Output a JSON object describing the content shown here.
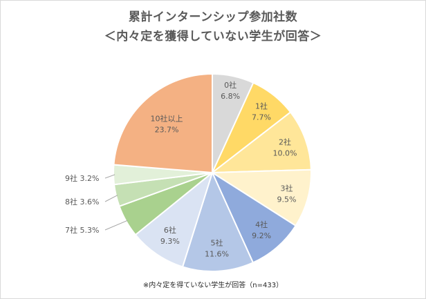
{
  "chart_data": {
    "type": "pie",
    "title": "累計インターンシップ参加社数",
    "subtitle": "＜内々定を獲得していない学生が回答＞",
    "note": "※内々定を得ていない学生が回答（n=433）",
    "slices": [
      {
        "name": "0社",
        "value": 6.8,
        "label": "6.8%",
        "color": "#d9d9d9"
      },
      {
        "name": "1社",
        "value": 7.7,
        "label": "7.7%",
        "color": "#ffd966"
      },
      {
        "name": "2社",
        "value": 10.0,
        "label": "10.0%",
        "color": "#ffe699"
      },
      {
        "name": "3社",
        "value": 9.5,
        "label": "9.5%",
        "color": "#fff2cc"
      },
      {
        "name": "4社",
        "value": 9.2,
        "label": "9.2%",
        "color": "#8faadc"
      },
      {
        "name": "5社",
        "value": 11.6,
        "label": "11.6%",
        "color": "#b4c7e7"
      },
      {
        "name": "6社",
        "value": 9.3,
        "label": "9.3%",
        "color": "#dae3f3"
      },
      {
        "name": "7社",
        "value": 5.3,
        "label": "5.3%",
        "color": "#a9d18e"
      },
      {
        "name": "8社",
        "value": 3.6,
        "label": "3.6%",
        "color": "#c5e0b4"
      },
      {
        "name": "9社",
        "value": 3.2,
        "label": "3.2%",
        "color": "#e2f0d9"
      },
      {
        "name": "10社以上",
        "value": 23.7,
        "label": "23.7%",
        "color": "#f4b183"
      }
    ]
  }
}
